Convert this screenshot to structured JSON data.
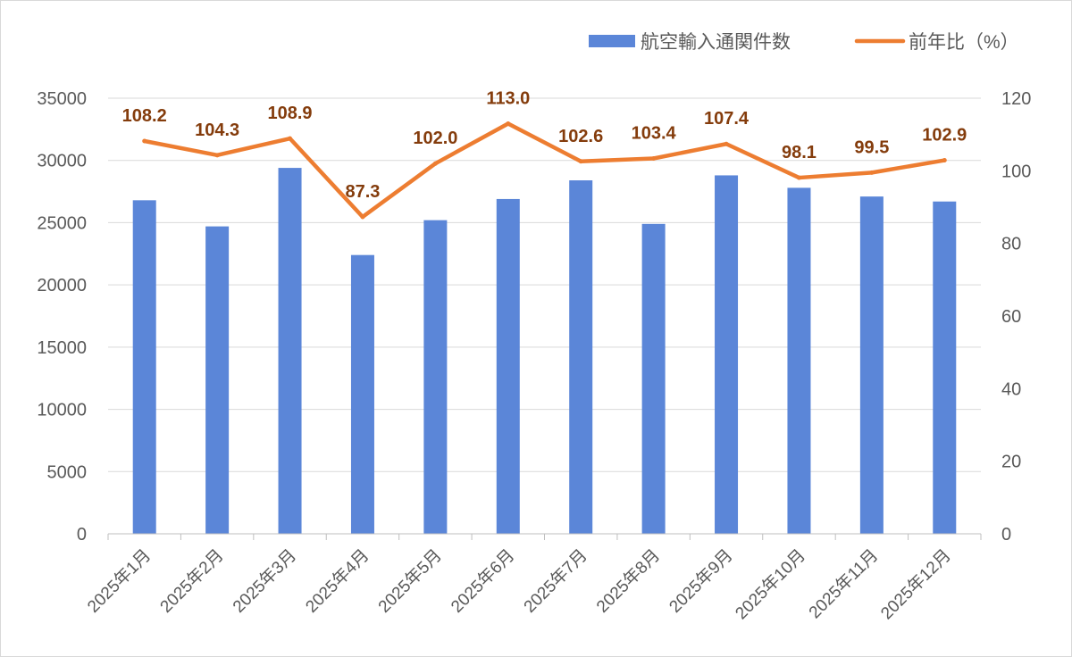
{
  "chart_data": {
    "type": "bar+line",
    "categories": [
      "2025年1月",
      "2025年2月",
      "2025年3月",
      "2025年4月",
      "2025年5月",
      "2025年6月",
      "2025年7月",
      "2025年8月",
      "2025年9月",
      "2025年10月",
      "2025年11月",
      "2025年12月"
    ],
    "series": [
      {
        "name": "航空輸入通関件数",
        "type": "bar",
        "axis": "left",
        "color": "#5b86d8",
        "values": [
          26800,
          24700,
          29400,
          22400,
          25200,
          26900,
          28400,
          24900,
          28800,
          27800,
          27100,
          26700
        ]
      },
      {
        "name": "前年比（%）",
        "type": "line",
        "axis": "right",
        "color": "#ed7d31",
        "values": [
          108.2,
          104.3,
          108.9,
          87.3,
          102.0,
          113.0,
          102.6,
          103.4,
          107.4,
          98.1,
          99.5,
          102.9
        ],
        "labels": [
          "108.2",
          "104.3",
          "108.9",
          "87.3",
          "102.0",
          "113.0",
          "102.6",
          "103.4",
          "107.4",
          "98.1",
          "99.5",
          "102.9"
        ]
      }
    ],
    "y_left": {
      "min": 0,
      "max": 35000,
      "ticks": [
        "0",
        "5000",
        "10000",
        "15000",
        "20000",
        "25000",
        "30000",
        "35000"
      ]
    },
    "y_right": {
      "min": 0,
      "max": 120,
      "ticks": [
        "0",
        "20",
        "40",
        "60",
        "80",
        "100",
        "120"
      ]
    },
    "grid": true,
    "legend": "top-right",
    "label_color": "#843c0c"
  }
}
